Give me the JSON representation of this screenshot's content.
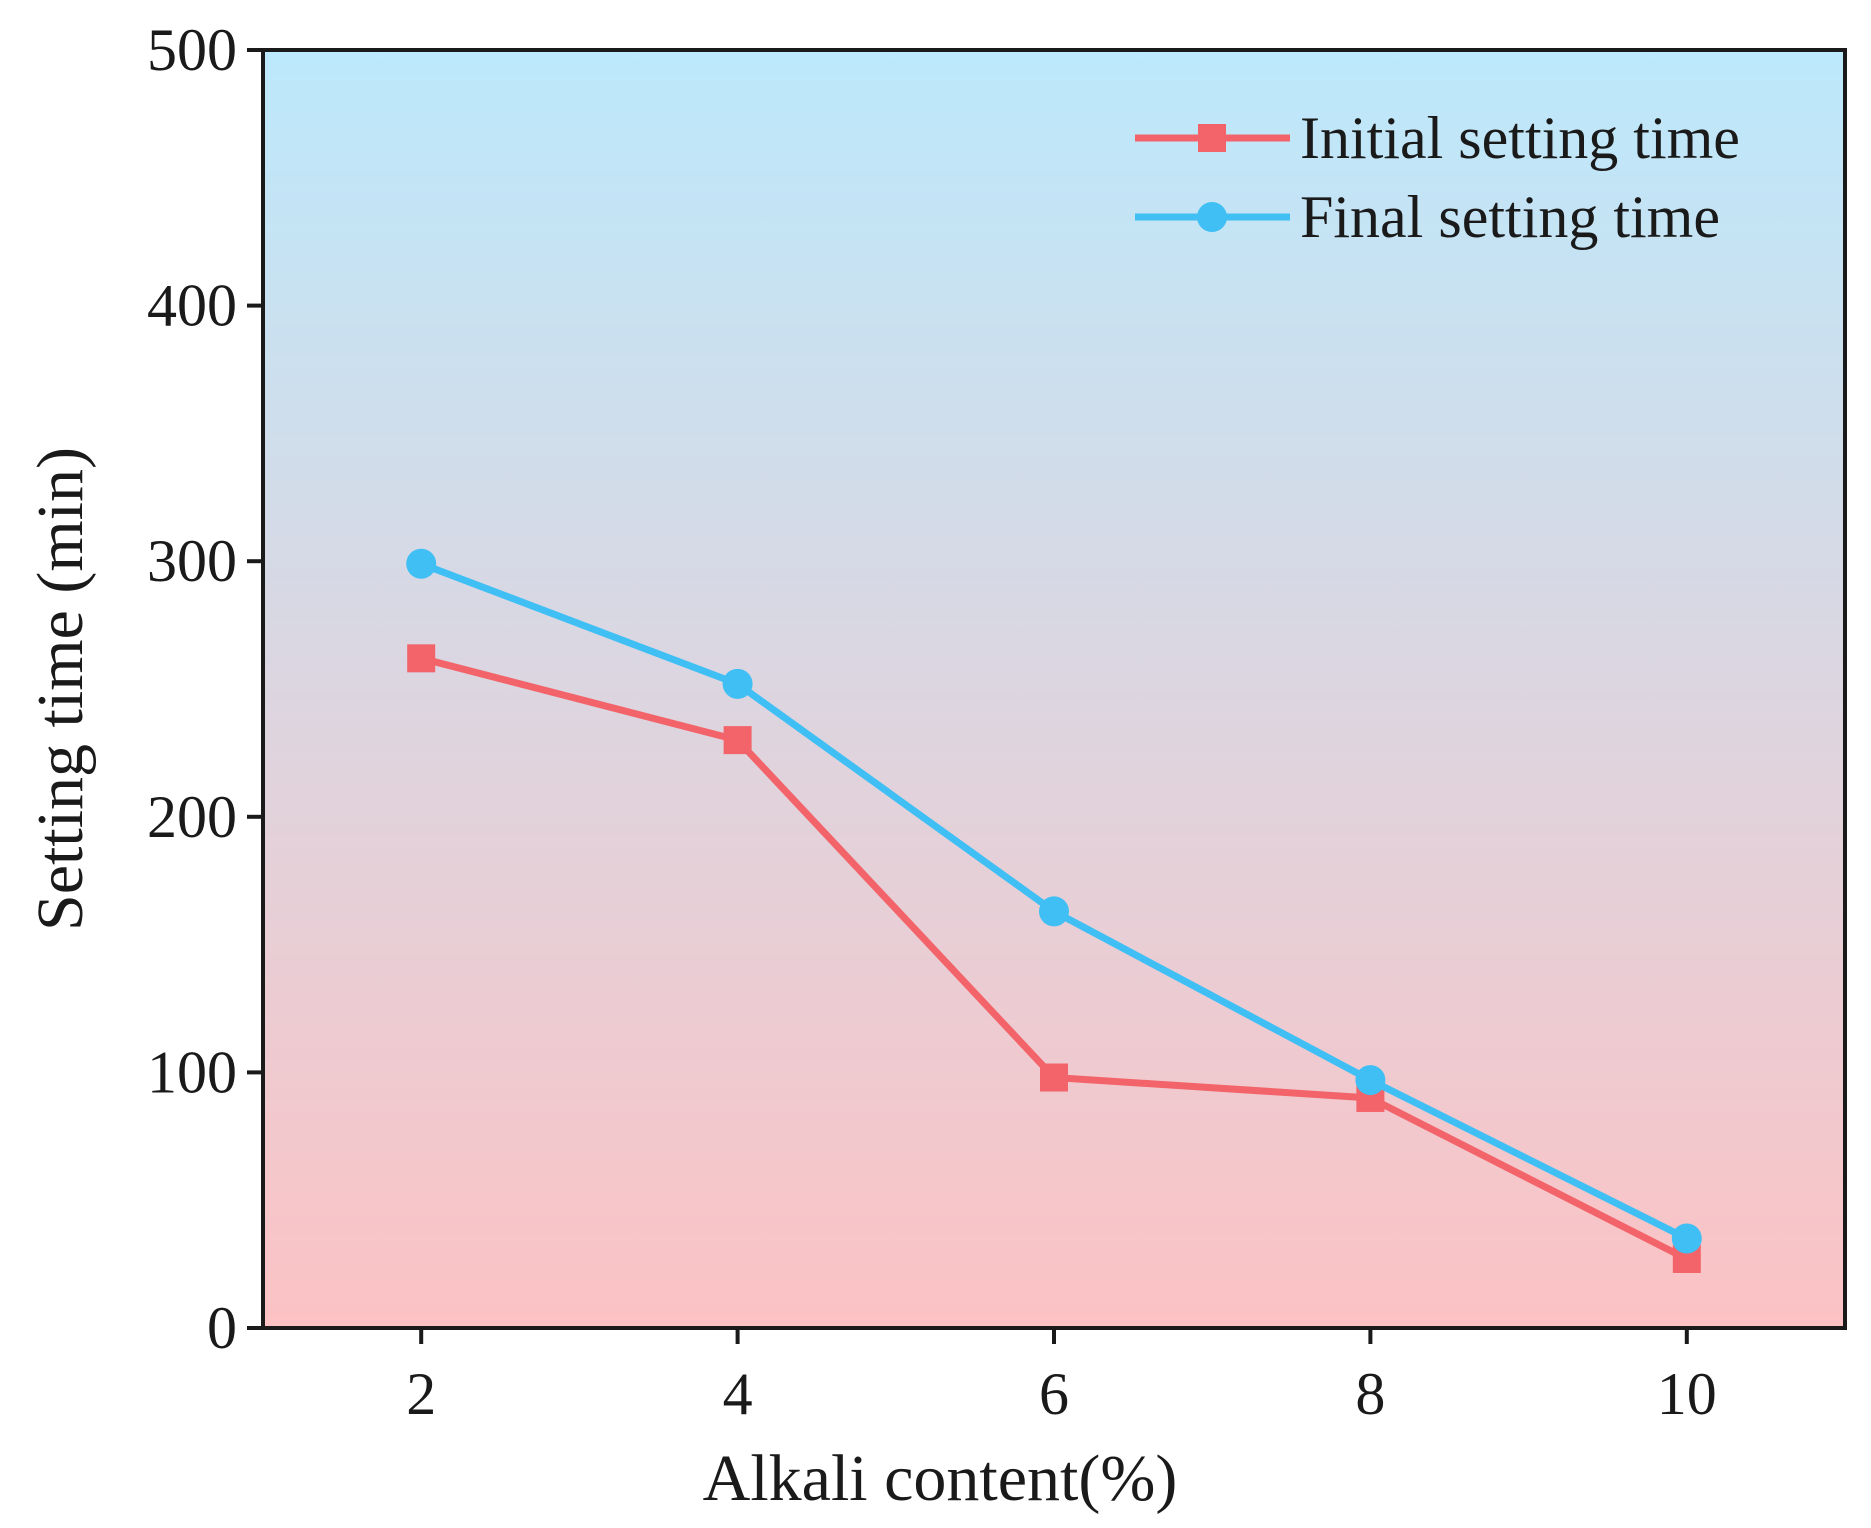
{
  "chart_data": {
    "type": "line",
    "title": "",
    "xlabel": "Alkali content(%)",
    "ylabel": "Setting time (min)",
    "x": [
      2,
      4,
      6,
      8,
      10
    ],
    "x_tick_labels": [
      "2",
      "4",
      "6",
      "8",
      "10"
    ],
    "xlim": [
      1,
      11
    ],
    "ylim": [
      0,
      500
    ],
    "y_ticks": [
      0,
      100,
      200,
      300,
      400,
      500
    ],
    "y_tick_labels": [
      "0",
      "100",
      "200",
      "300",
      "400",
      "500"
    ],
    "grid": false,
    "legend_position": "top-right",
    "background_gradient": {
      "top_color": "#bce9fc",
      "bottom_color": "#fcc2c4"
    },
    "series": [
      {
        "name": "Initial setting time",
        "marker": "square",
        "color": "#f26469",
        "values": [
          262,
          230,
          98,
          90,
          27
        ]
      },
      {
        "name": "Final setting time",
        "marker": "circle",
        "color": "#40bff5",
        "values": [
          299,
          252,
          163,
          97,
          35
        ]
      }
    ]
  }
}
